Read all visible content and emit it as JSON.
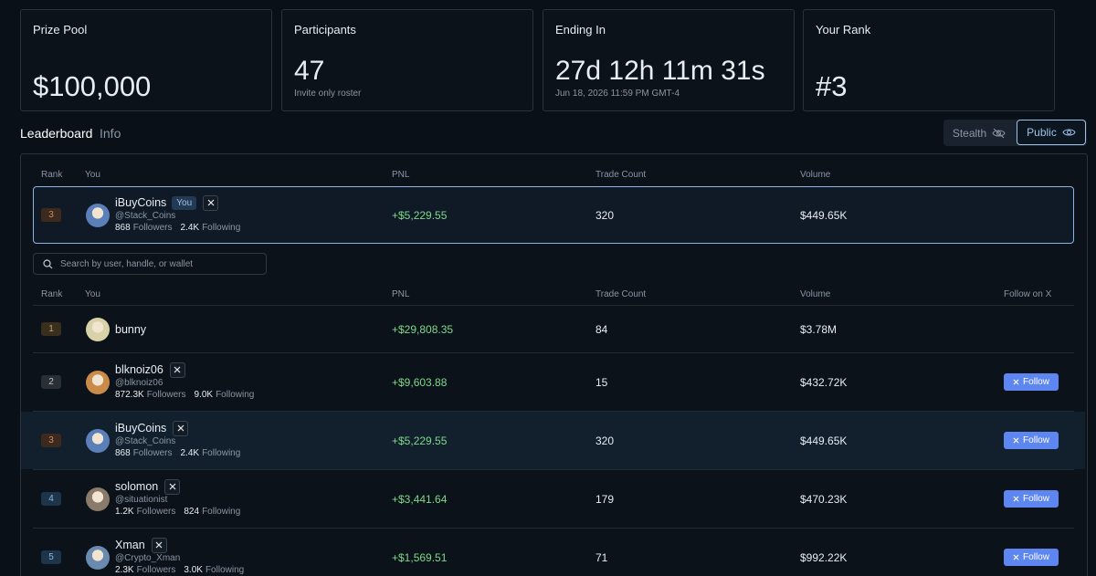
{
  "stats": [
    {
      "label": "Prize Pool",
      "value": "$100,000"
    },
    {
      "label": "Participants",
      "value": "47",
      "sub": "Invite only roster"
    },
    {
      "label": "Ending In",
      "value": "27d 12h 11m 31s",
      "sub": "Jun 18, 2026 11:59 PM GMT-4"
    },
    {
      "label": "Your Rank",
      "value": "#3"
    }
  ],
  "tabs": [
    "Leaderboard",
    "Info"
  ],
  "toggles": [
    "Stealth",
    "Public"
  ],
  "my_entry": {
    "columns": [
      "Rank",
      "You",
      "PNL",
      "Trade Count",
      "Volume"
    ],
    "row": {
      "rank": 3,
      "name": "iBuyCoins",
      "badge": "You",
      "handle": "@Stack_Coins",
      "followers": "868",
      "followers_label": "Followers",
      "following": "2.4K",
      "following_label": "Following",
      "pnl": "+$5,229.55",
      "trades": 320,
      "volume": "$449.65K"
    }
  },
  "search": {
    "placeholder": "Search by user, handle, or wallet"
  },
  "leaderboard": {
    "columns": [
      "Rank",
      "You",
      "PNL",
      "Trade Count",
      "Volume",
      "Follow on X"
    ],
    "rows": [
      {
        "rank": 1,
        "name": "bunny",
        "pnl": "+$29,808.35",
        "trades": 84,
        "volume": "$3.78M"
      },
      {
        "rank": 2,
        "name": "blknoiz06",
        "handle": "@blknoiz06",
        "followers": "872.3K",
        "followers_label": "Followers",
        "following": "9.0K",
        "following_label": "Following",
        "pnl": "+$9,603.88",
        "trades": 15,
        "volume": "$432.72K",
        "follow": "Follow"
      },
      {
        "rank": 3,
        "name": "iBuyCoins",
        "handle": "@Stack_Coins",
        "followers": "868",
        "followers_label": "Followers",
        "following": "2.4K",
        "following_label": "Following",
        "pnl": "+$5,229.55",
        "trades": 320,
        "volume": "$449.65K",
        "follow": "Follow"
      },
      {
        "rank": 4,
        "name": "solomon",
        "handle": "@situationist",
        "followers": "1.2K",
        "followers_label": "Followers",
        "following": "824",
        "following_label": "Following",
        "pnl": "+$3,441.64",
        "trades": 179,
        "volume": "$470.23K",
        "follow": "Follow"
      },
      {
        "rank": 5,
        "name": "Xman",
        "handle": "@Crypto_Xman",
        "followers": "2.3K",
        "followers_label": "Followers",
        "following": "3.0K",
        "following_label": "Following",
        "pnl": "+$1,569.51",
        "trades": 71,
        "volume": "$992.22K",
        "follow": "Follow"
      }
    ]
  }
}
